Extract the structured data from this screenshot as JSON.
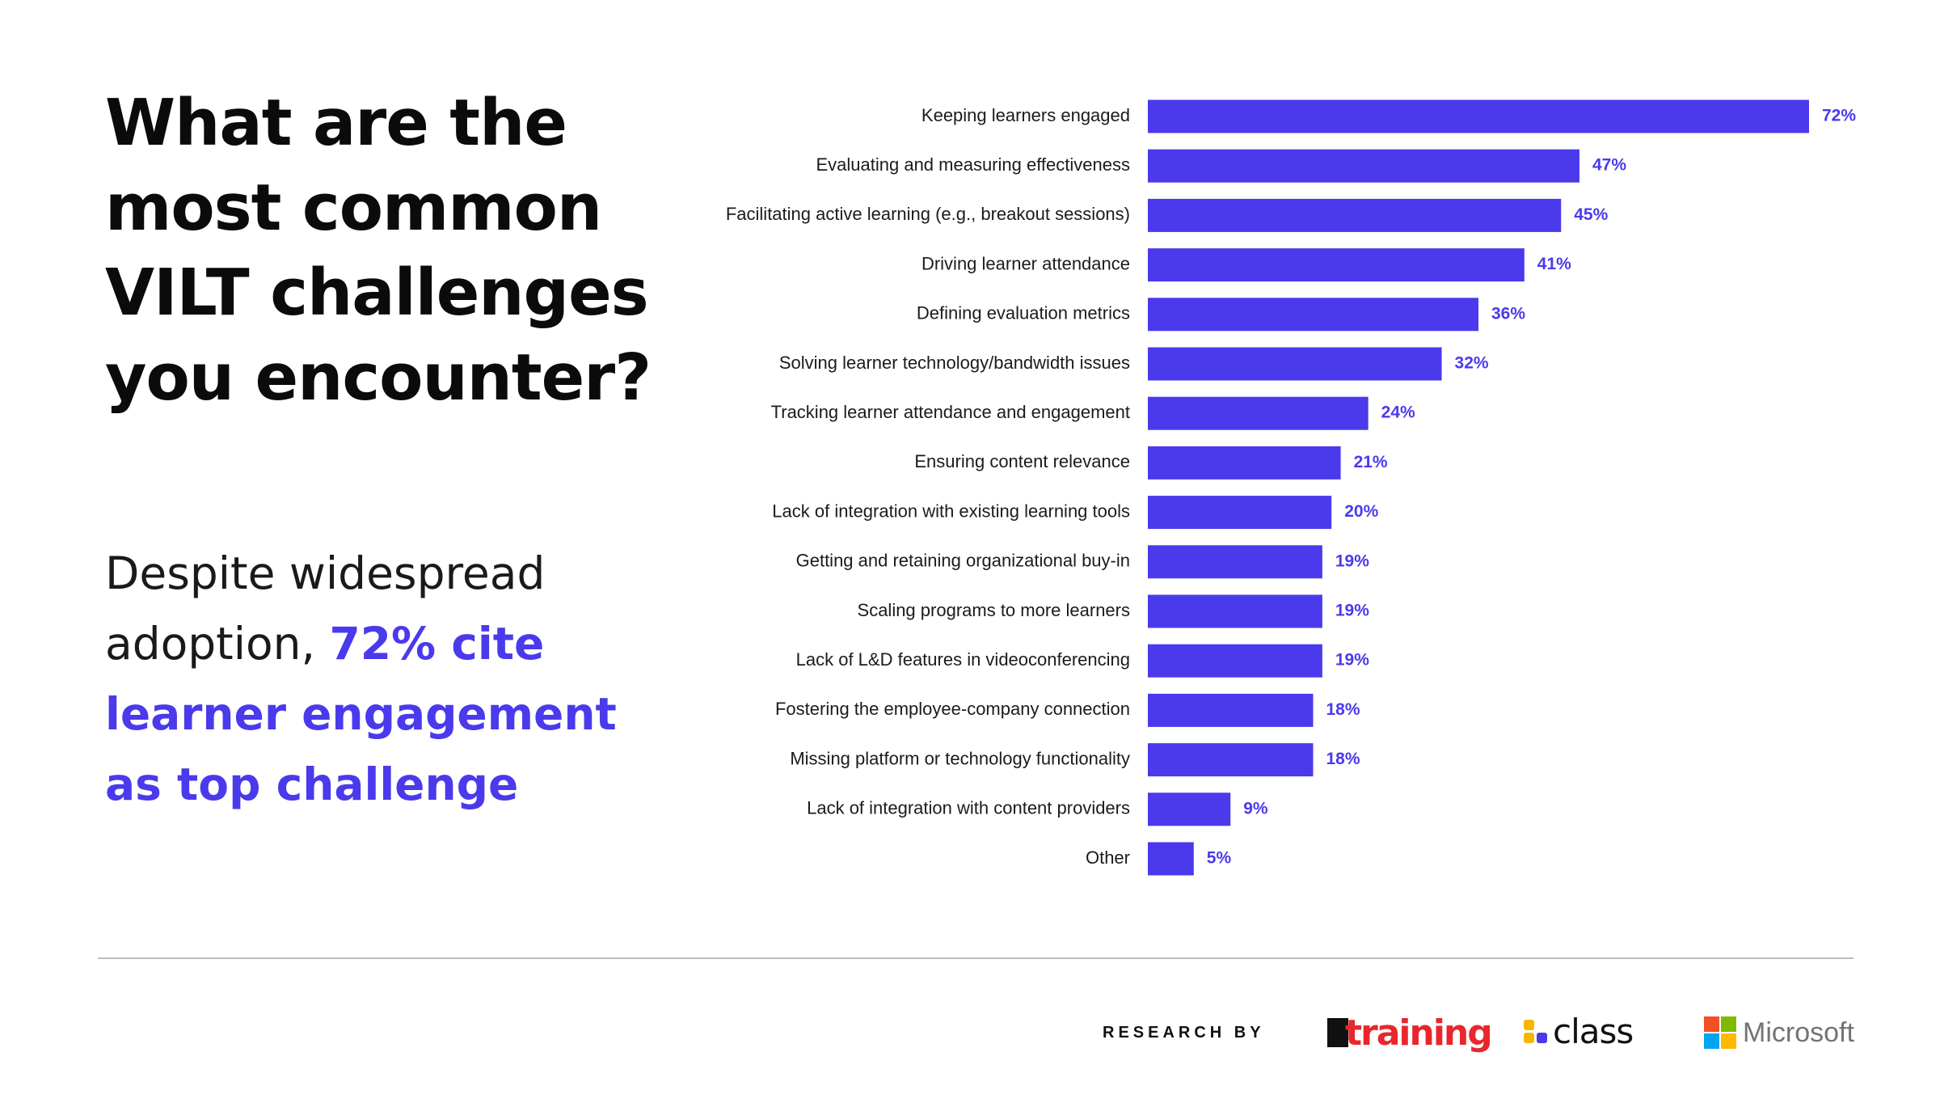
{
  "headline": "What are the most common VILT challenges you encounter?",
  "subtext": {
    "plain": "Despite widespread adoption, ",
    "highlight": "72% cite learner engagement as top challenge"
  },
  "colors": {
    "accent": "#4a3aec",
    "text": "#111111",
    "divider": "#bdbdbd"
  },
  "chart_data": {
    "type": "bar",
    "orientation": "horizontal",
    "categories": [
      "Keeping learners engaged",
      "Evaluating and measuring effectiveness",
      "Facilitating active learning (e.g., breakout sessions)",
      "Driving learner attendance",
      "Defining evaluation metrics",
      "Solving learner technology/bandwidth issues",
      "Tracking learner attendance and engagement",
      "Ensuring content relevance",
      "Lack of integration with existing learning tools",
      "Getting and retaining organizational buy-in",
      "Scaling programs to more learners",
      "Lack of L&D features in videoconferencing",
      "Fostering the employee-company connection",
      "Missing platform or technology functionality",
      "Lack of integration with content providers",
      "Other"
    ],
    "values": [
      72,
      47,
      45,
      41,
      36,
      32,
      24,
      21,
      20,
      19,
      19,
      19,
      18,
      18,
      9,
      5
    ],
    "value_labels": [
      "72%",
      "47%",
      "45%",
      "41%",
      "36%",
      "32%",
      "24%",
      "21%",
      "20%",
      "19%",
      "19%",
      "19%",
      "18%",
      "18%",
      "9%",
      "5%"
    ],
    "bar_color": "#4a3aec",
    "xlim": [
      0,
      72
    ],
    "grid": false,
    "legend": "none"
  },
  "footer": {
    "research_by": "RESEARCH BY",
    "logos": {
      "training": "training",
      "class": "class",
      "microsoft": "Microsoft"
    }
  }
}
